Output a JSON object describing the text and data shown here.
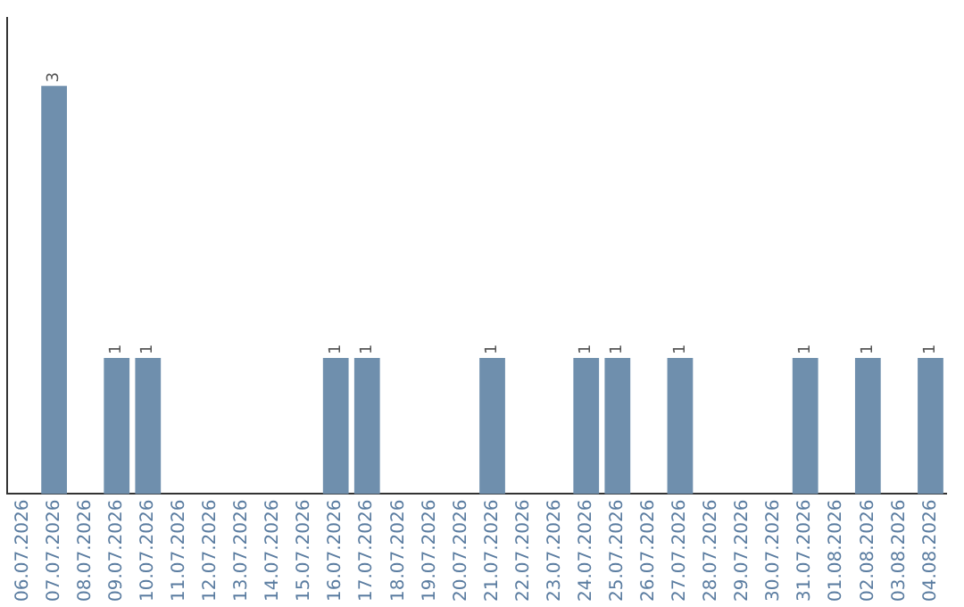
{
  "chart_data": {
    "type": "bar",
    "categories": [
      "06.07.2026",
      "07.07.2026",
      "08.07.2026",
      "09.07.2026",
      "10.07.2026",
      "11.07.2026",
      "12.07.2026",
      "13.07.2026",
      "14.07.2026",
      "15.07.2026",
      "16.07.2026",
      "17.07.2026",
      "18.07.2026",
      "19.07.2026",
      "20.07.2026",
      "21.07.2026",
      "22.07.2026",
      "23.07.2026",
      "24.07.2026",
      "25.07.2026",
      "26.07.2026",
      "27.07.2026",
      "28.07.2026",
      "29.07.2026",
      "30.07.2026",
      "31.07.2026",
      "01.08.2026",
      "02.08.2026",
      "03.08.2026",
      "04.08.2026"
    ],
    "values": [
      0,
      3,
      0,
      1,
      1,
      0,
      0,
      0,
      0,
      0,
      1,
      1,
      0,
      0,
      0,
      1,
      0,
      0,
      1,
      1,
      0,
      1,
      0,
      0,
      0,
      1,
      0,
      1,
      0,
      1
    ],
    "value_labels": [
      null,
      "3",
      null,
      "1",
      "1",
      null,
      null,
      null,
      null,
      null,
      "1",
      "1",
      null,
      null,
      null,
      "1",
      null,
      null,
      "1",
      "1",
      null,
      "1",
      null,
      null,
      null,
      "1",
      null,
      "1",
      null,
      "1"
    ],
    "color": "#6f8fad"
  }
}
